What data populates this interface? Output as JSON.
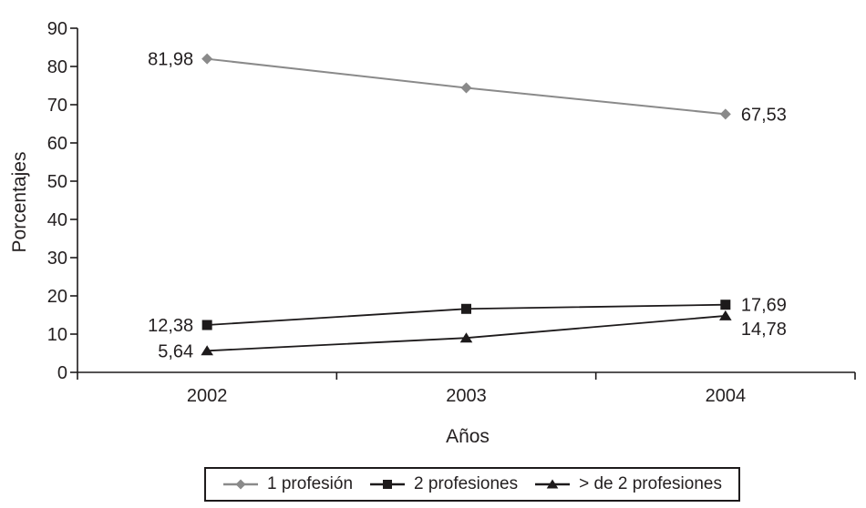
{
  "figure": {
    "background": "#ffffff",
    "text_color": "#231f20",
    "axis_color": "#1d1a1b"
  },
  "chart_data": {
    "type": "line",
    "title": "",
    "xlabel": "Años",
    "ylabel": "Porcentajes",
    "categories": [
      "2002",
      "2003",
      "2004"
    ],
    "ylim": [
      0,
      90
    ],
    "ytick_step": 10,
    "yticks": [
      0,
      10,
      20,
      30,
      40,
      50,
      60,
      70,
      80,
      90
    ],
    "grid": false,
    "legend_position": "bottom",
    "series": [
      {
        "name": "1 profesión",
        "marker": "diamond",
        "color": "#8a8a8a",
        "line_width": 2,
        "values": [
          81.98,
          74.4,
          67.53
        ],
        "point_labels": [
          "81,98",
          "",
          "67,53"
        ],
        "label_dy": [
          0,
          0,
          0
        ]
      },
      {
        "name": "2 profesiones",
        "marker": "square",
        "color": "#1d1a1b",
        "line_width": 1.8,
        "values": [
          12.38,
          16.6,
          17.69
        ],
        "point_labels": [
          "12,38",
          "",
          "17,69"
        ],
        "label_dy": [
          0,
          0,
          0
        ]
      },
      {
        "name": "> de 2 profesiones",
        "marker": "triangle",
        "color": "#1d1a1b",
        "line_width": 1.8,
        "values": [
          5.64,
          9.0,
          14.78
        ],
        "point_labels": [
          "5,64",
          "",
          "14,78"
        ],
        "label_dy": [
          0,
          0,
          14
        ]
      }
    ]
  }
}
